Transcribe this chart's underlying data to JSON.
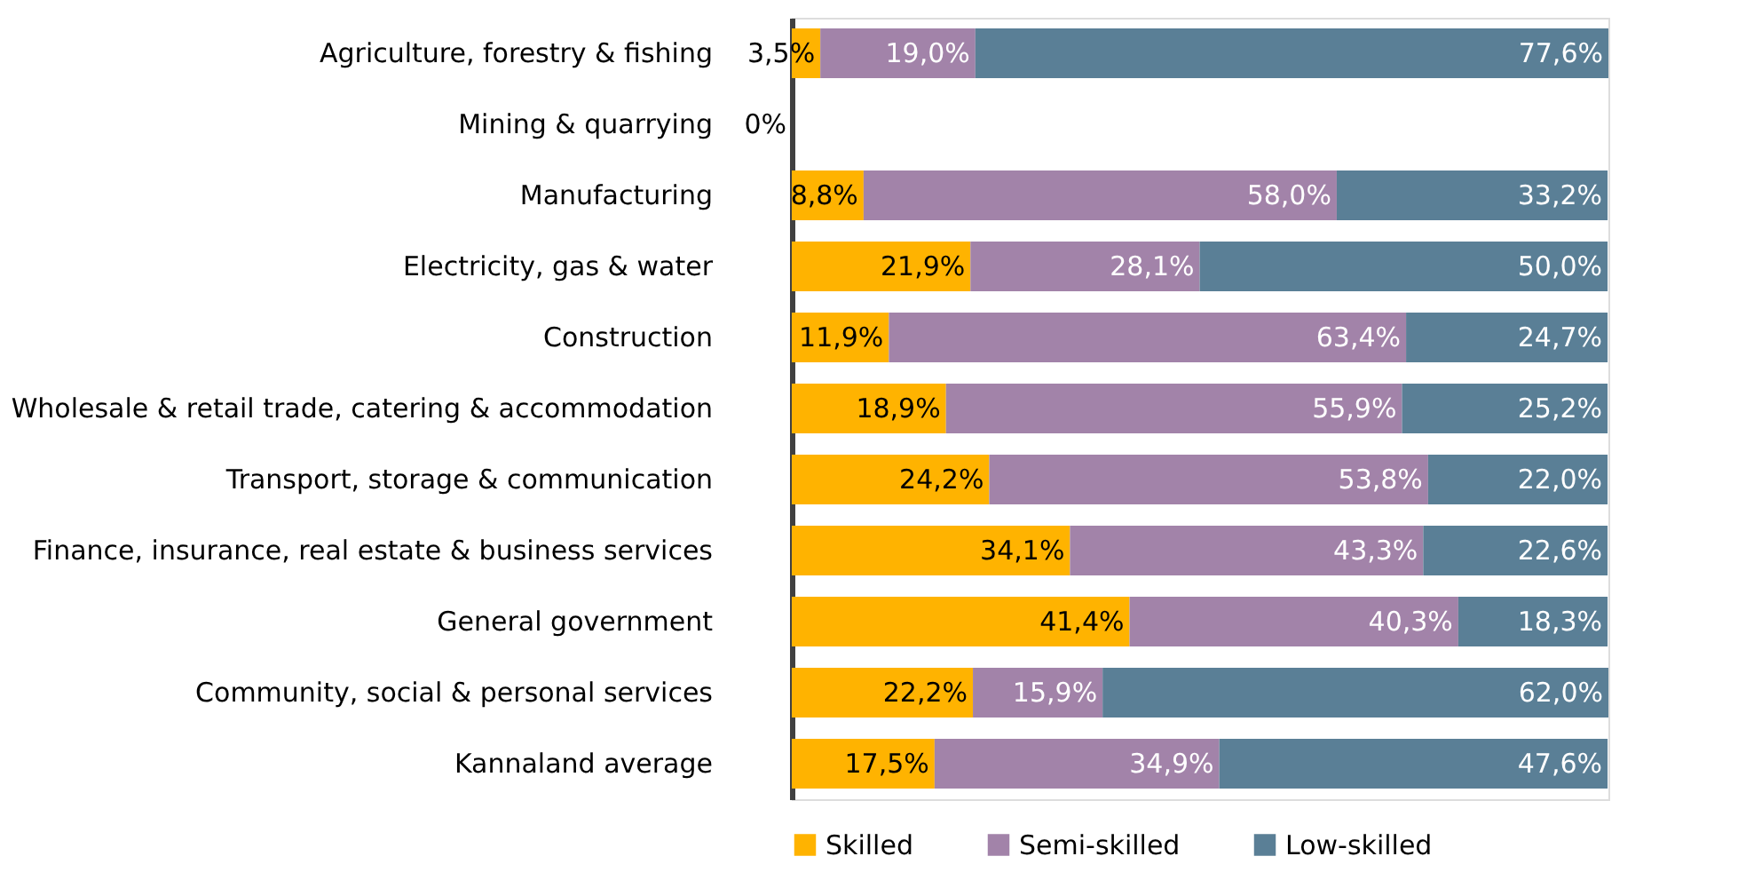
{
  "chart_data": {
    "type": "bar",
    "orientation": "horizontal",
    "stacked": true,
    "categories": [
      "Agriculture, forestry & fishing",
      "Mining & quarrying",
      "Manufacturing",
      "Electricity, gas & water",
      "Construction",
      "Wholesale & retail trade, catering & accommodation",
      "Transport, storage & communication",
      "Finance, insurance, real estate & business services",
      "General government",
      "Community, social & personal services",
      "Kannaland average"
    ],
    "series": [
      {
        "name": "Skilled",
        "color": "#ffb300",
        "values": [
          3.5,
          0,
          8.8,
          21.9,
          11.9,
          18.9,
          24.2,
          34.1,
          41.4,
          22.2,
          17.5
        ],
        "value_labels": [
          "3,5%",
          "0%",
          "8,8%",
          "21,9%",
          "11,9%",
          "18,9%",
          "24,2%",
          "34,1%",
          "41,4%",
          "22,2%",
          "17,5%"
        ]
      },
      {
        "name": "Semi-skilled",
        "color": "#a283a9",
        "values": [
          19.0,
          0,
          58.0,
          28.1,
          63.4,
          55.9,
          53.8,
          43.3,
          40.3,
          15.9,
          34.9
        ],
        "value_labels": [
          "19,0%",
          null,
          "58,0%",
          "28,1%",
          "63,4%",
          "55,9%",
          "53,8%",
          "43,3%",
          "40,3%",
          "15,9%",
          "34,9%"
        ]
      },
      {
        "name": "Low-skilled",
        "color": "#5a7f96",
        "values": [
          77.6,
          0,
          33.2,
          50.0,
          24.7,
          25.2,
          22.0,
          22.6,
          18.3,
          62.0,
          47.6
        ],
        "value_labels": [
          "77,6%",
          null,
          "33,2%",
          "50,0%",
          "24,7%",
          "25,2%",
          "22,0%",
          "22,6%",
          "18,3%",
          "62,0%",
          "47,6%"
        ]
      }
    ],
    "xlim": [
      0,
      100.1
    ],
    "tick_labels": "y",
    "grid": false,
    "legend": "bottom"
  }
}
